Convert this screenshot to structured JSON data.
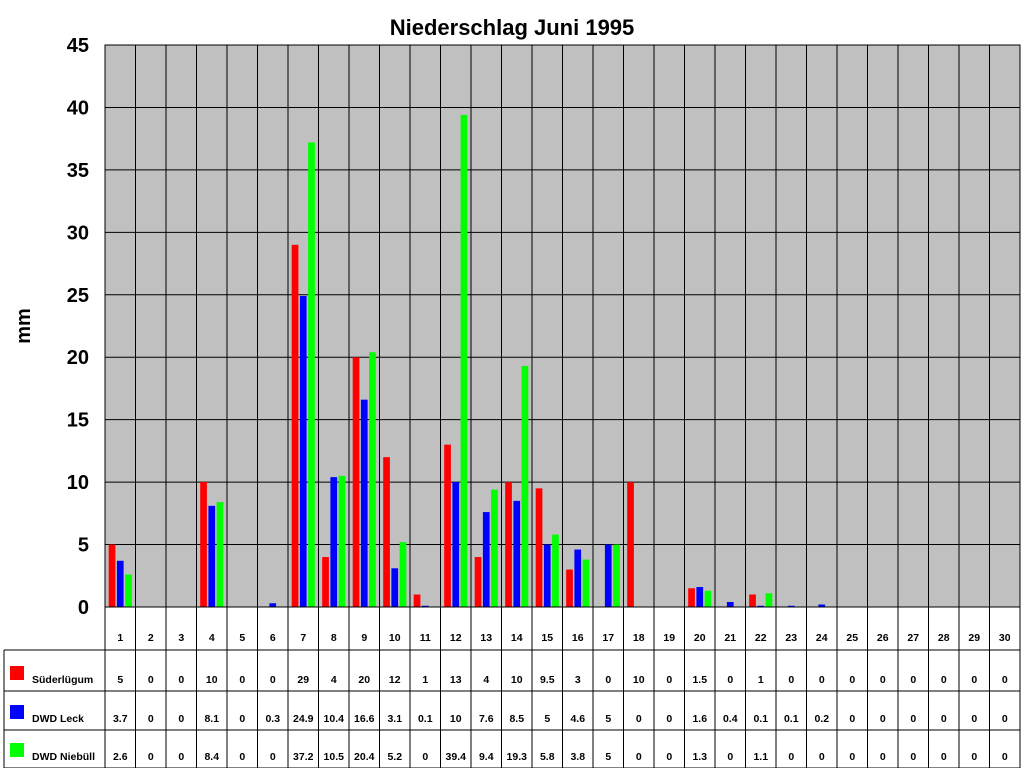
{
  "chart_data": {
    "type": "bar",
    "title": "Niederschlag Juni 1995",
    "ylabel": "mm",
    "xlabel": "",
    "ylim": [
      0,
      45
    ],
    "yticks": [
      0,
      5,
      10,
      15,
      20,
      25,
      30,
      35,
      40,
      45
    ],
    "grid": true,
    "legend_placement": "data-table-left",
    "categories": [
      "1",
      "2",
      "3",
      "4",
      "5",
      "6",
      "7",
      "8",
      "9",
      "10",
      "11",
      "12",
      "13",
      "14",
      "15",
      "16",
      "17",
      "18",
      "19",
      "20",
      "21",
      "22",
      "23",
      "24",
      "25",
      "26",
      "27",
      "28",
      "29",
      "30"
    ],
    "series": [
      {
        "name": "Süderlügum",
        "color": "#ff0000",
        "values": [
          5,
          0,
          0,
          10,
          0,
          0,
          29,
          4,
          20,
          12,
          1,
          13,
          4,
          10,
          9.5,
          3,
          0,
          10,
          0,
          1.5,
          0,
          1,
          0,
          0,
          0,
          0,
          0,
          0,
          0,
          0
        ]
      },
      {
        "name": "DWD Leck",
        "color": "#0000ff",
        "values": [
          3.7,
          0,
          0,
          8.1,
          0,
          0.3,
          24.9,
          10.4,
          16.6,
          3.1,
          0.1,
          10,
          7.6,
          8.5,
          5,
          4.6,
          5,
          0,
          0,
          1.6,
          0.4,
          0.1,
          0.1,
          0.2,
          0,
          0,
          0,
          0,
          0,
          0
        ]
      },
      {
        "name": "DWD Niebüll",
        "color": "#00ff00",
        "values": [
          2.6,
          0,
          0,
          8.4,
          0,
          0,
          37.2,
          10.5,
          20.4,
          5.2,
          0,
          39.4,
          9.4,
          19.3,
          5.8,
          3.8,
          5,
          0,
          0,
          1.3,
          0,
          1.1,
          0,
          0,
          0,
          0,
          0,
          0,
          0,
          0
        ]
      }
    ],
    "plot_background": "#c0c0c0"
  }
}
